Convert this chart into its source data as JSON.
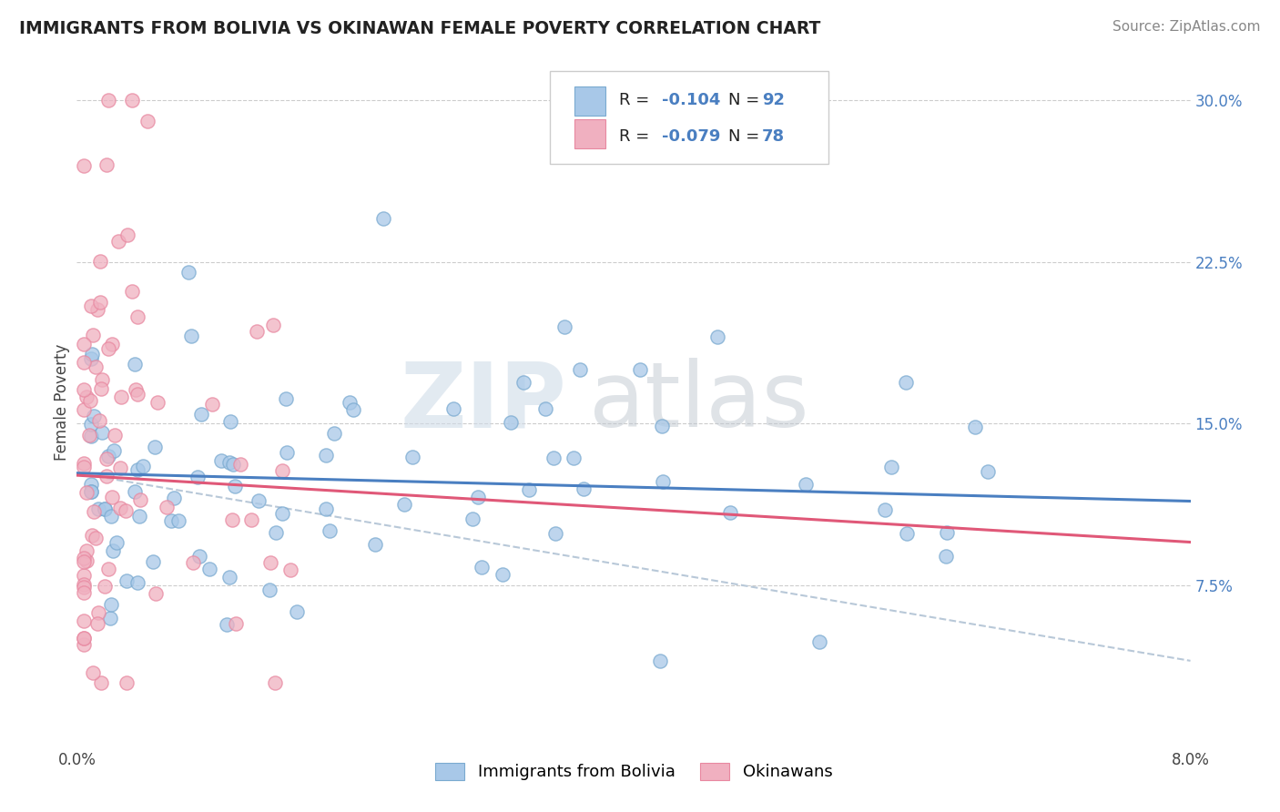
{
  "title": "IMMIGRANTS FROM BOLIVIA VS OKINAWAN FEMALE POVERTY CORRELATION CHART",
  "source": "Source: ZipAtlas.com",
  "ylabel": "Female Poverty",
  "y_ticks": [
    "7.5%",
    "15.0%",
    "22.5%",
    "30.0%"
  ],
  "y_tick_vals": [
    0.075,
    0.15,
    0.225,
    0.3
  ],
  "x_lim": [
    0.0,
    0.08
  ],
  "y_lim": [
    0.0,
    0.32
  ],
  "blue_color": "#a8c8e8",
  "pink_color": "#f0b0c0",
  "blue_edge_color": "#7aaad0",
  "pink_edge_color": "#e888a0",
  "blue_line_color": "#4a7fc1",
  "pink_line_color": "#e05878",
  "dashed_line_color": "#b8c8d8",
  "legend_label1": "Immigrants from Bolivia",
  "legend_label2": "Okinawans",
  "blue_trend_x0": 0.0,
  "blue_trend_y0": 0.127,
  "blue_trend_x1": 0.08,
  "blue_trend_y1": 0.114,
  "pink_trend_x0": 0.0,
  "pink_trend_y0": 0.126,
  "pink_trend_x1": 0.08,
  "pink_trend_y1": 0.095,
  "dash_trend_x0": 0.0,
  "dash_trend_y0": 0.127,
  "dash_trend_x1": 0.08,
  "dash_trend_y1": 0.04
}
